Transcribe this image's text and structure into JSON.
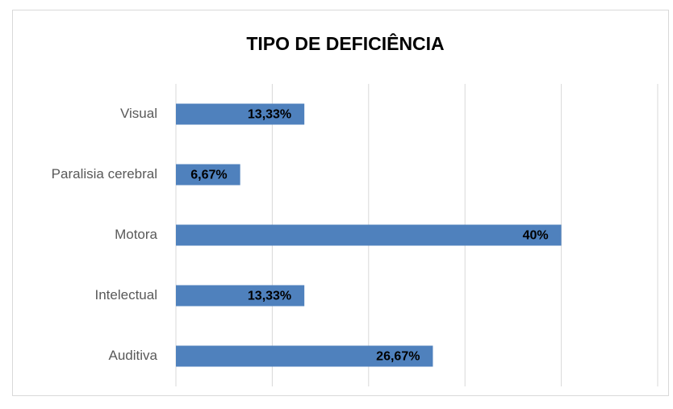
{
  "chart_data": {
    "type": "bar",
    "orientation": "horizontal",
    "title": "TIPO DE DEFICIÊNCIA",
    "categories": [
      "Visual",
      "Paralisia cerebral",
      "Motora",
      "Intelectual",
      "Auditiva"
    ],
    "values": [
      13.33,
      6.67,
      40,
      13.33,
      26.67
    ],
    "value_labels": [
      "13,33%",
      "6,67%",
      "40%",
      "13,33%",
      "26,67%"
    ],
    "color": "#4f81bd",
    "xlim": [
      0,
      50
    ],
    "xticks": [
      0,
      10,
      20,
      30,
      40,
      50
    ],
    "grid": true
  }
}
